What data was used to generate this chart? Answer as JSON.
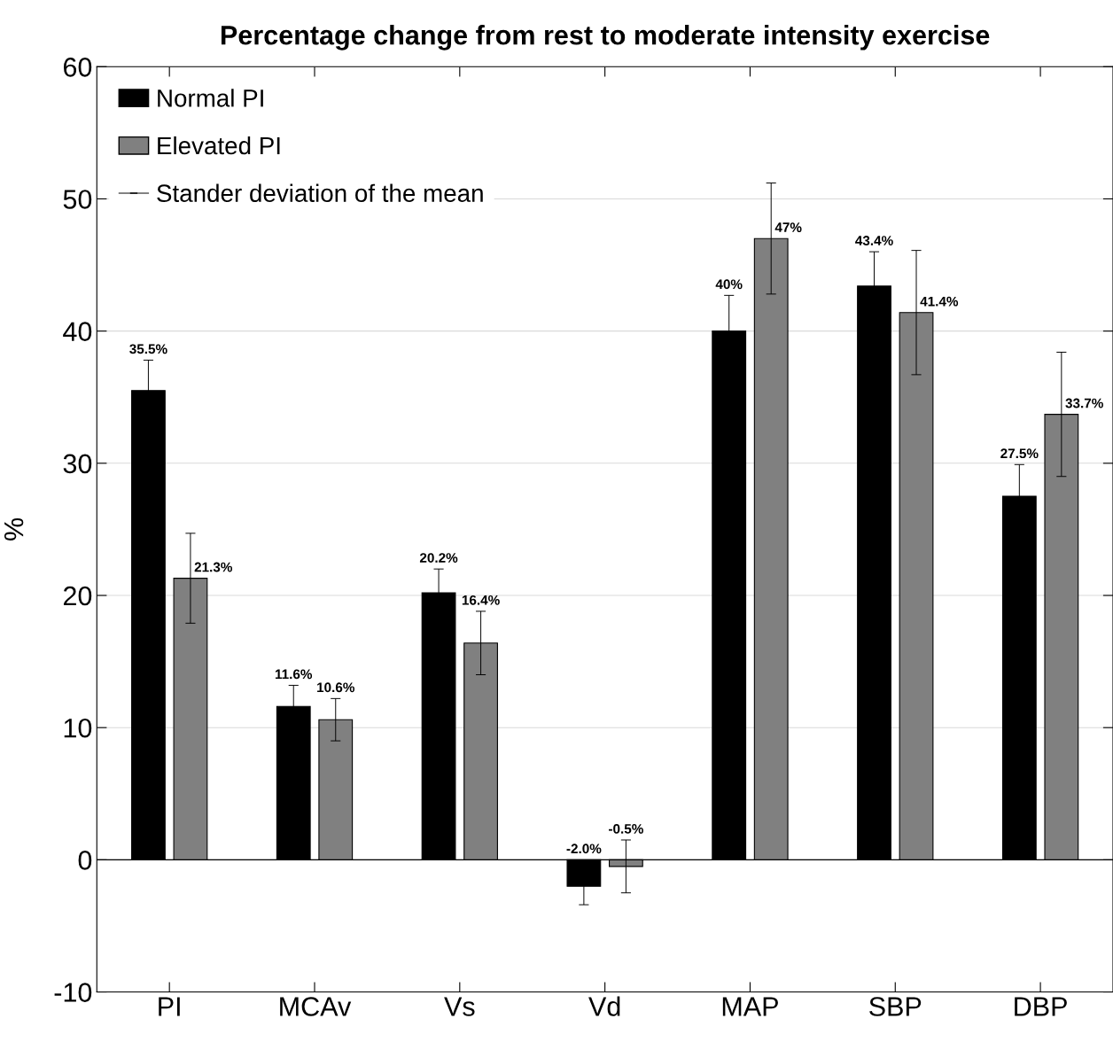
{
  "chart_data": {
    "type": "bar",
    "title": "Percentage change from rest to moderate intensity exercise",
    "ylabel": "%",
    "categories": [
      "PI",
      "MCAv",
      "Vs",
      "Vd",
      "MAP",
      "SBP",
      "DBP"
    ],
    "series": [
      {
        "name": "Normal PI",
        "color": "#000000",
        "values": [
          35.5,
          11.6,
          20.2,
          -2.0,
          40,
          43.4,
          27.5
        ],
        "errors": [
          2.3,
          1.6,
          1.8,
          1.4,
          2.7,
          2.6,
          2.4
        ],
        "value_labels": [
          "35.5%",
          "11.6%",
          "20.2%",
          "-2.0%",
          "40%",
          "43.4%",
          "27.5%"
        ]
      },
      {
        "name": "Elevated PI",
        "color": "#808080",
        "values": [
          21.3,
          10.6,
          16.4,
          -0.5,
          47,
          41.4,
          33.7
        ],
        "errors": [
          3.4,
          1.6,
          2.4,
          2.0,
          4.2,
          4.7,
          4.7
        ],
        "value_labels": [
          "21.3%",
          "10.6%",
          "16.4%",
          "-0.5%",
          "47%",
          "41.4%",
          "33.7%"
        ]
      }
    ],
    "annotations": [
      "Stander deviation of the mean"
    ],
    "ylim": [
      -10,
      60
    ],
    "yticks": [
      -10,
      0,
      10,
      20,
      30,
      40,
      50,
      60
    ],
    "ref_lines": [
      {
        "axis": "y",
        "value": 0,
        "color": "#000000"
      }
    ],
    "grid": "y",
    "legend": "top left"
  }
}
